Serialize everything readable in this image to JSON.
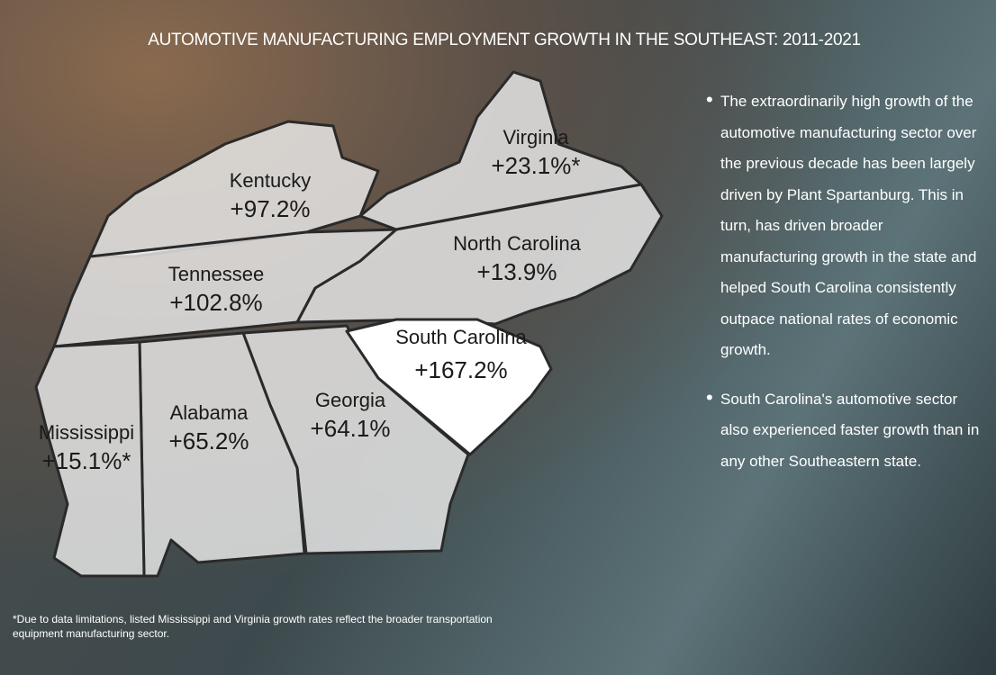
{
  "title": "AUTOMOTIVE MANUFACTURING EMPLOYMENT GROWTH IN THE SOUTHEAST: 2011-2021",
  "states": [
    {
      "name": "Kentucky",
      "change": "+97.2%"
    },
    {
      "name": "Virginia",
      "change": "+23.1%*"
    },
    {
      "name": "North Carolina",
      "change": "+13.9%"
    },
    {
      "name": "Tennessee",
      "change": "+102.8%"
    },
    {
      "name": "South Carolina",
      "change": "+167.2%"
    },
    {
      "name": "Georgia",
      "change": "+64.1%"
    },
    {
      "name": "Alabama",
      "change": "+65.2%"
    },
    {
      "name": "Mississippi",
      "change": "+15.1%*"
    }
  ],
  "bullets": [
    "The extraordinarily high growth of the automotive manufacturing sector over the previous decade has been largely driven by Plant Spartanburg. This in turn, has driven broader manufacturing growth in the state and helped South Carolina consistently outpace national rates of economic growth.",
    "South Carolina's automotive sector also experienced faster growth than in any other Southeastern state."
  ],
  "footnote": "*Due to data limitations, listed Mississippi and Virginia growth rates reflect the broader transportation equipment manufacturing sector."
}
